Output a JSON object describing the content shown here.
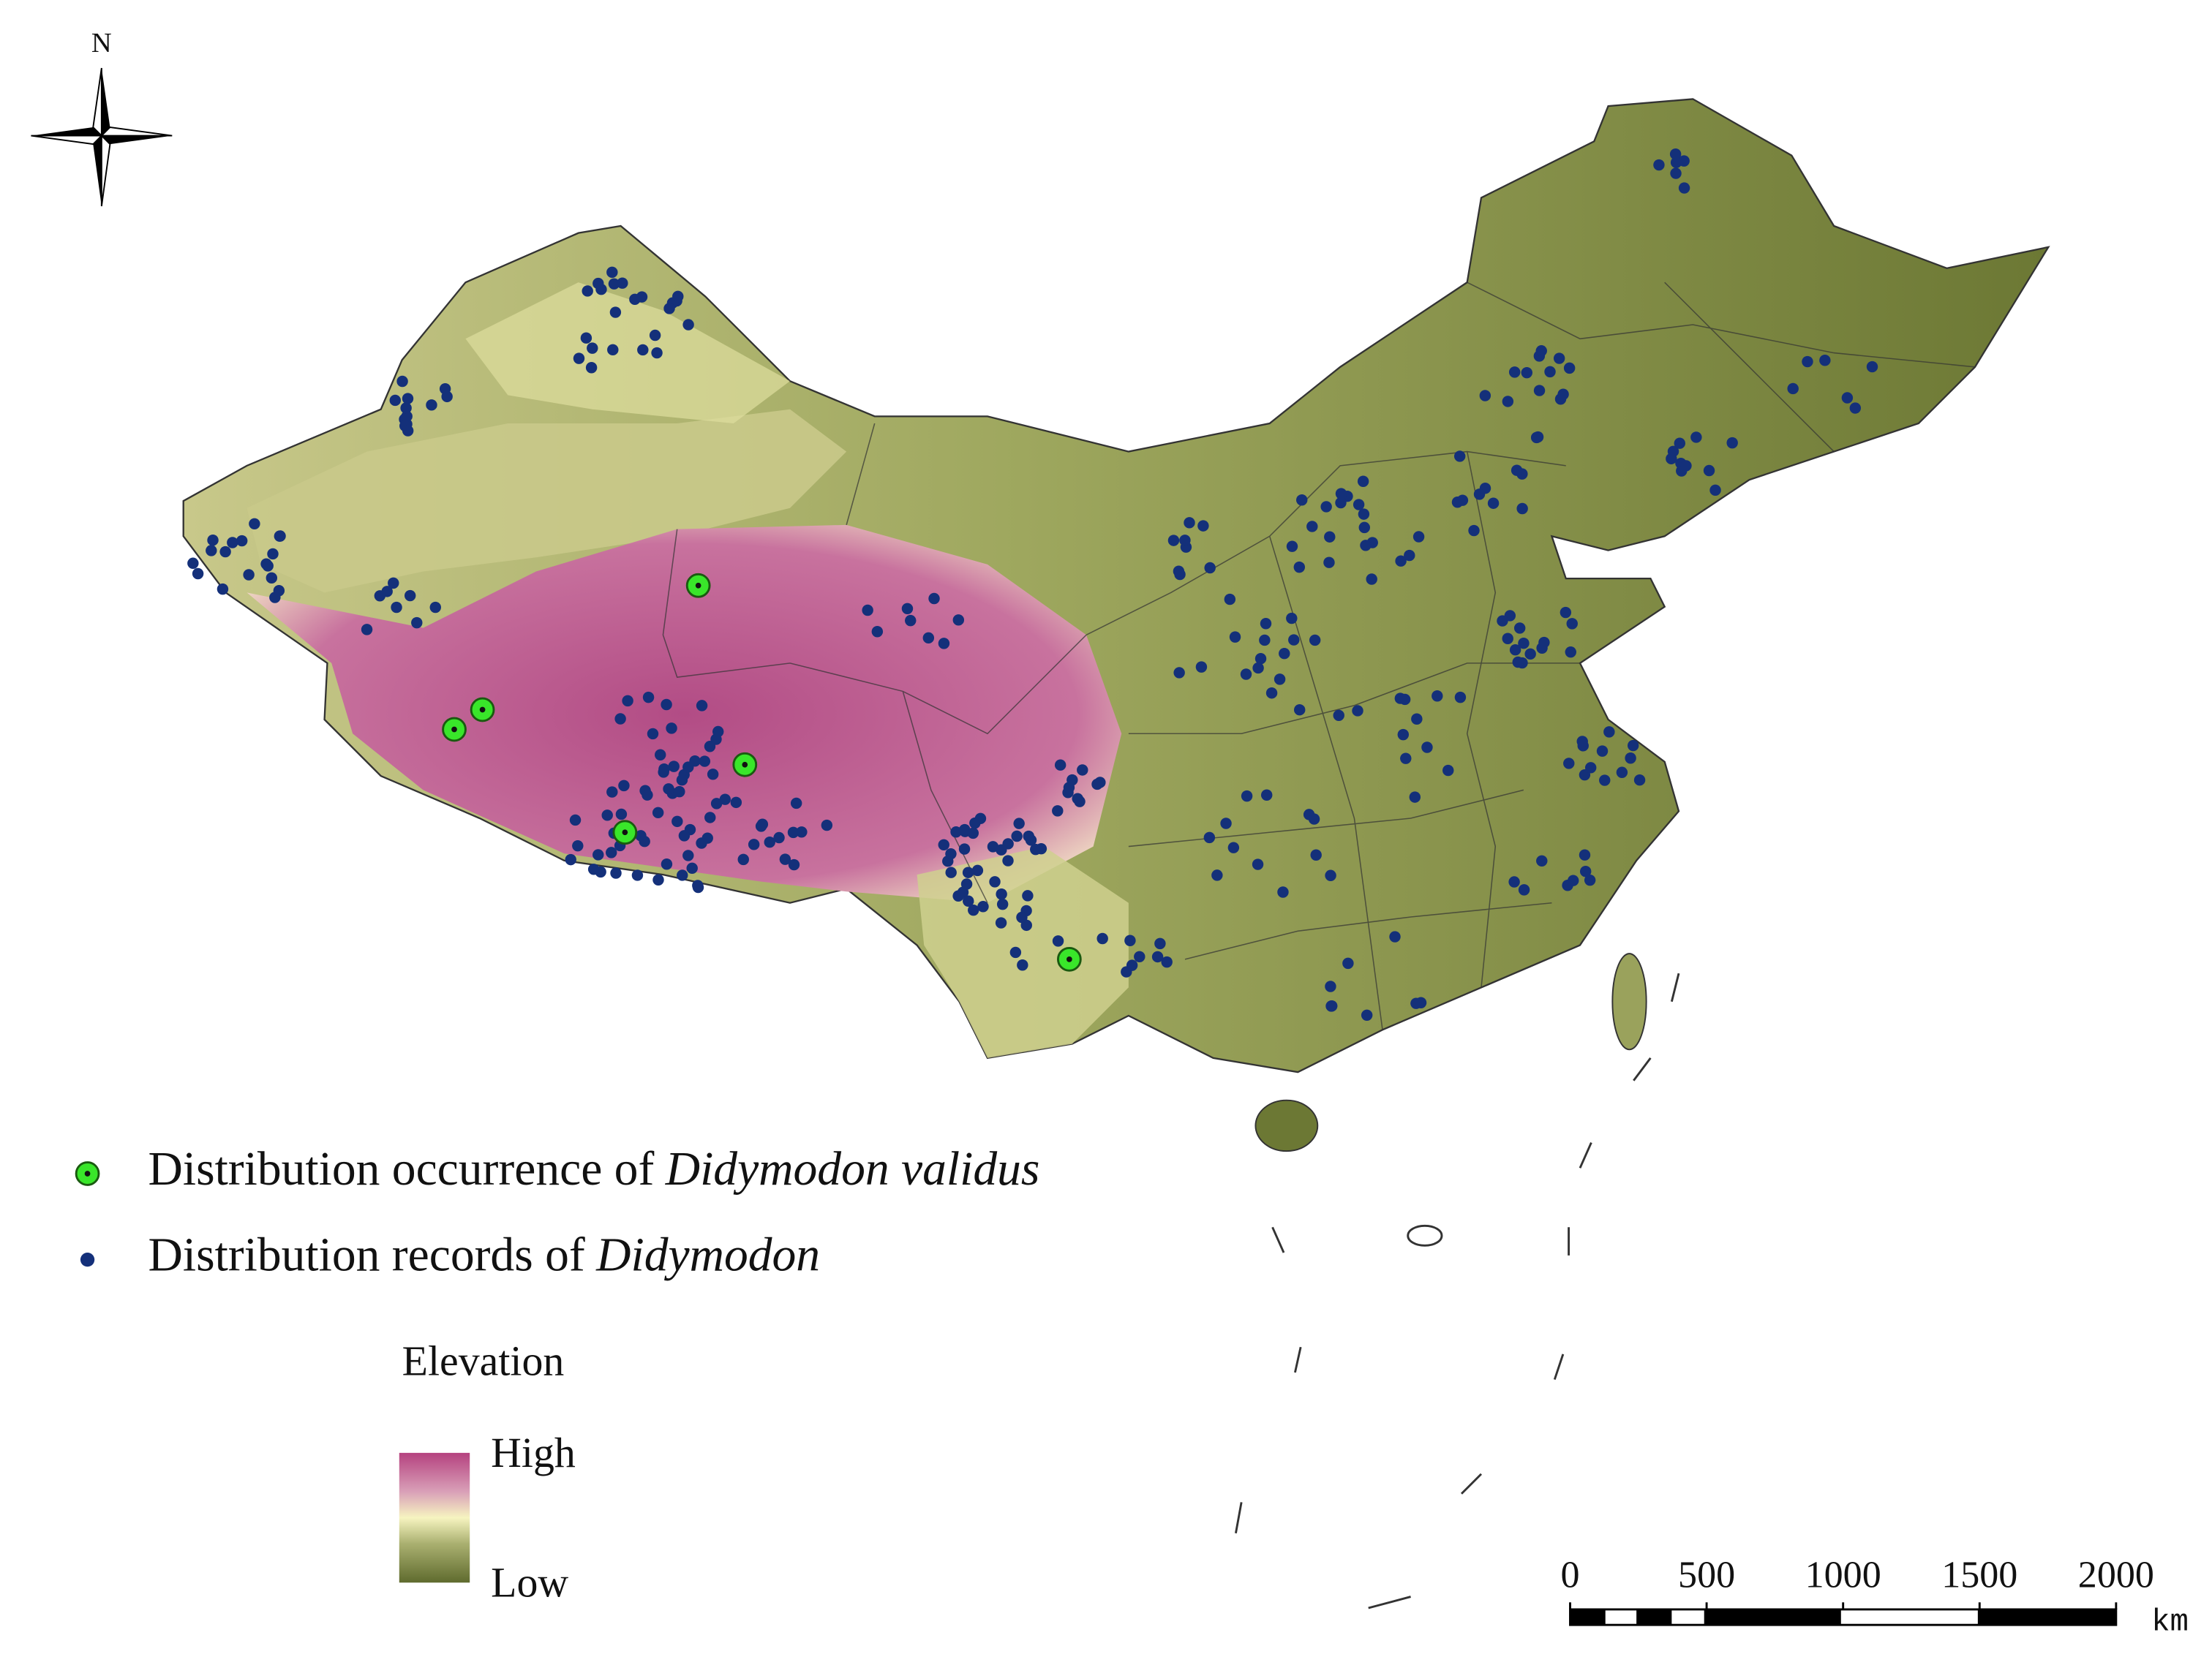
{
  "compass": {
    "label": "N"
  },
  "legend": {
    "items": [
      {
        "text": "Distribution occurrence of",
        "species": "Didymodon validus"
      },
      {
        "text": "Distribution records of",
        "species": "Didymodon"
      }
    ]
  },
  "elevation_legend": {
    "title": "Elevation",
    "high": "High",
    "low": "Low"
  },
  "scale_bar": {
    "ticks": [
      0,
      500,
      1000,
      1500,
      2000
    ],
    "unit": "km"
  }
}
